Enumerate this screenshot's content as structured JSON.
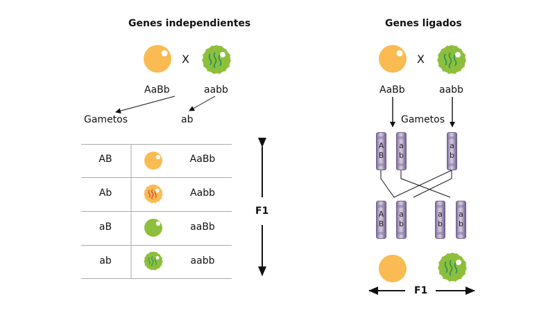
{
  "left": {
    "title": "Genes independientes",
    "cross_x": "X",
    "parent1": "AaBb",
    "parent2": "aabb",
    "gametes_label": "Gametos",
    "gamete2": "ab",
    "f1_label": "F1",
    "table": [
      {
        "gamete": "AB",
        "phenotype": "yellow-smooth-seed-icon",
        "genotype": "AaBb"
      },
      {
        "gamete": "Ab",
        "phenotype": "yellow-wrinkled-seed-icon",
        "genotype": "Aabb"
      },
      {
        "gamete": "aB",
        "phenotype": "green-smooth-seed-icon",
        "genotype": "aaBb"
      },
      {
        "gamete": "ab",
        "phenotype": "green-wrinkled-seed-icon",
        "genotype": "aabb"
      }
    ]
  },
  "right": {
    "title": "Genes ligados",
    "cross_x": "X",
    "parent1": "AaBb",
    "parent2": "aabb",
    "gametes_label": "Gametos",
    "f1_label": "F1",
    "parent_chromosomes": [
      {
        "alleles": [
          "A",
          "B"
        ]
      },
      {
        "alleles": [
          "a",
          "b"
        ]
      },
      {
        "alleles": [
          "a",
          "b"
        ]
      }
    ],
    "offspring_chromosomes": [
      {
        "alleles": [
          "A",
          "B"
        ]
      },
      {
        "alleles": [
          "a",
          "b"
        ]
      },
      {
        "alleles": [
          "a",
          "b"
        ]
      },
      {
        "alleles": [
          "a",
          "b"
        ]
      }
    ]
  },
  "colors": {
    "yellow_seed": "#f9bb52",
    "green_seed": "#8dbf3c",
    "wrinkle_green": "#1e8f5c",
    "wrinkle_red": "#e0392b",
    "chromosome": "#b3a7c6",
    "table_lines": "#a9a9a9"
  }
}
